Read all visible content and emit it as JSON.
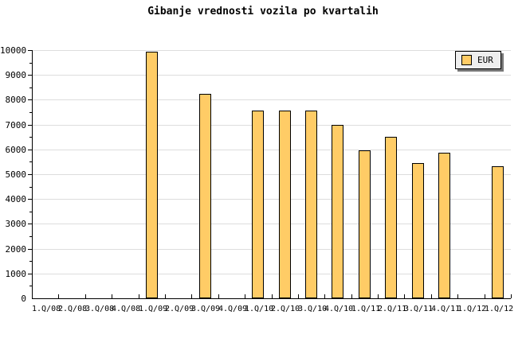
{
  "chart_data": {
    "type": "bar",
    "title": "Gibanje vrednosti vozila po kvartalih",
    "xlabel": "",
    "ylabel": "",
    "categories": [
      "1.Q/08",
      "2.Q/08",
      "3.Q/08",
      "4.Q/08",
      "1.Q/09",
      "2.Q/09",
      "3.Q/09",
      "4.Q/09",
      "1.Q/10",
      "2.Q/10",
      "3.Q/10",
      "4.Q/10",
      "1.Q/11",
      "2.Q/11",
      "3.Q/11",
      "4.Q/11",
      "1.Q/12",
      "1.Q/12"
    ],
    "series": [
      {
        "name": "EUR",
        "values": [
          null,
          null,
          null,
          null,
          9950,
          null,
          8250,
          null,
          7550,
          7550,
          7550,
          7000,
          5950,
          6500,
          5450,
          5850,
          null,
          5330
        ]
      }
    ],
    "ylim": [
      0,
      10000
    ],
    "y_major_step": 1000,
    "y_minor_step": 500,
    "y_tick_labels": [
      "0",
      "1000",
      "2000",
      "3000",
      "4000",
      "5000",
      "6000",
      "7000",
      "8000",
      "9000",
      "10000"
    ],
    "grid": "horizontal-major",
    "legend": {
      "position": "top-right",
      "entries": [
        {
          "label": "EUR",
          "color": "#FFCC66"
        }
      ]
    },
    "colors": {
      "bar_fill": "#FFCC66",
      "bar_border": "#000000",
      "gridline": "#DDDDDD",
      "axis": "#000000",
      "background": "#FFFFFF",
      "legend_bg": "#EEEEEE",
      "legend_shadow": "#777777",
      "text": "#000000"
    }
  }
}
